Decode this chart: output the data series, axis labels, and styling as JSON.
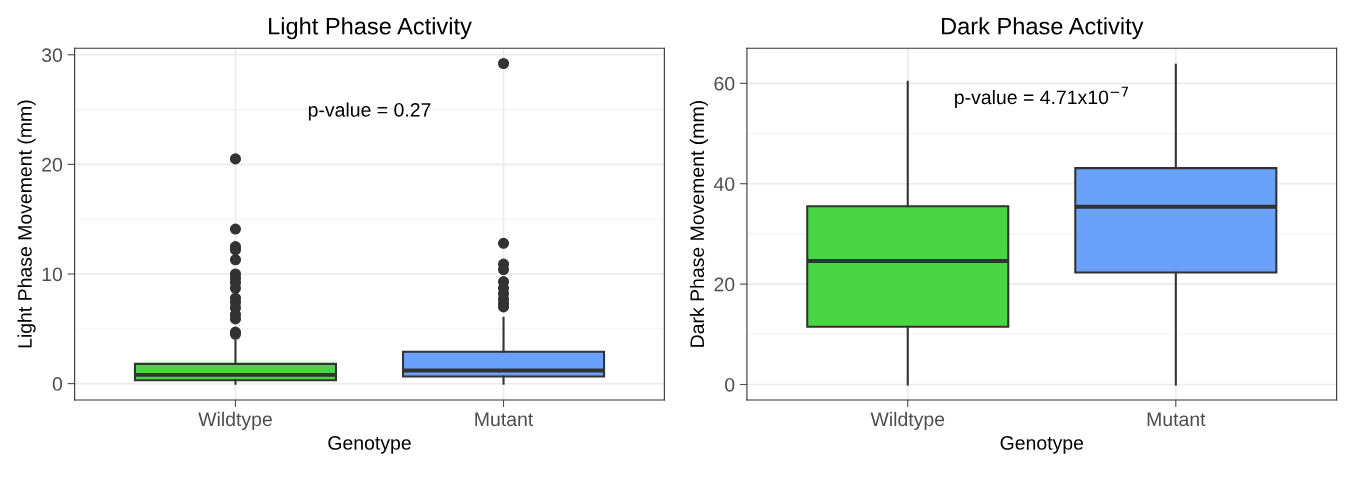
{
  "chart_data": [
    {
      "type": "box",
      "title": "Light Phase Activity",
      "xlabel": "Genotype",
      "ylabel": "Light Phase Movement (mm)",
      "categories": [
        "Wildtype",
        "Mutant"
      ],
      "colors": [
        "#48d645",
        "#6aa1fb"
      ],
      "boxes": [
        {
          "low": 0,
          "q1": 0.3,
          "median": 0.8,
          "q3": 1.8,
          "high": 3.9,
          "outliers": [
            20.5,
            14.1,
            12.5,
            12.2,
            11.3,
            10.0,
            9.6,
            9.2,
            8.7,
            7.8,
            7.4,
            6.9,
            6.3,
            5.9,
            4.7,
            4.5
          ]
        },
        {
          "low": 0,
          "q1": 0.65,
          "median": 1.2,
          "q3": 2.9,
          "high": 6.0,
          "outliers": [
            29.2,
            12.8,
            10.9,
            10.4,
            9.3,
            8.7,
            8.2,
            7.7,
            7.3,
            7.0
          ]
        }
      ],
      "ylim": [
        -1.5,
        30.6
      ],
      "yticks": [
        0,
        10,
        20,
        30
      ],
      "grid": true,
      "annotations": [
        "p-value = 0.27"
      ]
    },
    {
      "type": "box",
      "title": "Dark Phase Activity",
      "xlabel": "Genotype",
      "ylabel": "Dark Phase Movement (mm)",
      "categories": [
        "Wildtype",
        "Mutant"
      ],
      "colors": [
        "#48d645",
        "#6aa1fb"
      ],
      "boxes": [
        {
          "low": 0,
          "q1": 11.5,
          "median": 24.6,
          "q3": 35.5,
          "high": 60.3
        },
        {
          "low": 0,
          "q1": 22.3,
          "median": 35.4,
          "q3": 43.1,
          "high": 63.7
        }
      ],
      "ylim": [
        -3.1,
        67.0
      ],
      "yticks": [
        0,
        20,
        40,
        60
      ],
      "grid": true,
      "annotations": [
        "p-value = 4.71x10$^{−7}$"
      ]
    }
  ]
}
